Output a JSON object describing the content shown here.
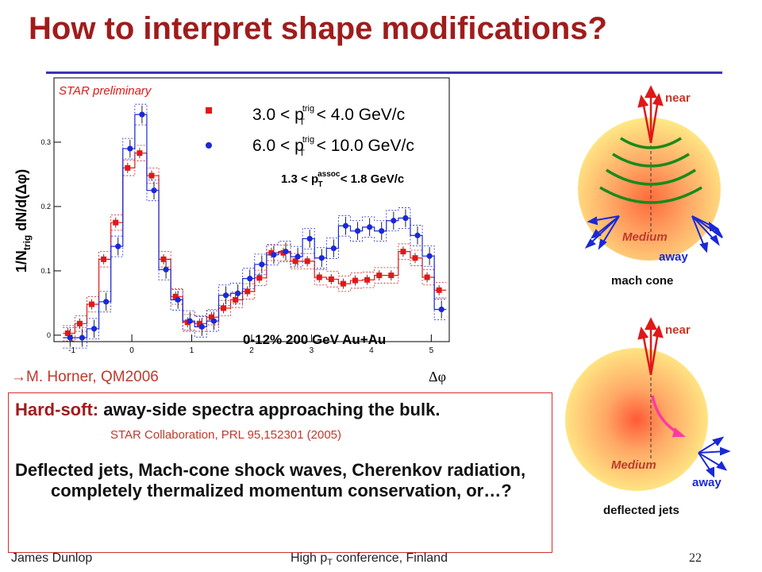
{
  "slide": {
    "title": "How to interpret shape modifications?",
    "reference": "M. Horner, QM2006",
    "reference_arrow": "→",
    "hard_soft_label": "Hard-soft:",
    "hard_soft_text": " away-side spectra approaching the bulk.",
    "citation": "STAR Collaboration, PRL 95,152301 (2005)",
    "deflected_text": "Deflected jets, Mach-cone shock waves, Cherenkov radiation, completely thermalized momentum conservation, or…?",
    "footer_author": "James Dunlop",
    "footer_conf_pre": "High p",
    "footer_conf_sub": "T",
    "footer_conf_post": " conference, Finland",
    "page_number": "22"
  },
  "diagrams": {
    "mach": {
      "near": "near",
      "away": "away",
      "medium": "Medium",
      "caption": "mach cone"
    },
    "deflected": {
      "near": "near",
      "away": "away",
      "medium": "Medium",
      "caption": "deflected jets"
    }
  },
  "chart_data": {
    "type": "scatter",
    "preliminary_label": "STAR preliminary",
    "ylabel_main": "1/N",
    "ylabel_sub": "trig",
    "ylabel_rest": " dN/d(Δφ)",
    "xlabel": "Δφ",
    "centrality_label": "0-12% 200 GeV Au+Au",
    "assoc_label": "1.3 < p",
    "assoc_sup": "assoc",
    "assoc_sub": "T",
    "assoc_rest": " < 1.8 GeV/c",
    "xlim": [
      -1.3,
      5.3
    ],
    "ylim": [
      -0.01,
      0.4
    ],
    "xticks": [
      -1,
      0,
      1,
      2,
      3,
      4,
      5
    ],
    "yticks": [
      0,
      0.1,
      0.2,
      0.3
    ],
    "ytick_labels": [
      "0",
      "0.1",
      "0.2",
      "0.3"
    ],
    "grid": false,
    "legend_position": "top-right",
    "colors": {
      "red": "#e01818",
      "blue": "#1a28d8"
    },
    "x": [
      -1.05,
      -0.85,
      -0.65,
      -0.45,
      -0.25,
      -0.05,
      0.15,
      0.35,
      0.55,
      0.75,
      0.95,
      1.15,
      1.35,
      1.55,
      1.75,
      1.95,
      2.15,
      2.35,
      2.55,
      2.75,
      2.95,
      3.15,
      3.35,
      3.55,
      3.75,
      3.95,
      4.15,
      4.35,
      4.55,
      4.75,
      4.95,
      5.15
    ],
    "series": [
      {
        "name": "3.0 < p",
        "name_sup": "trig",
        "name_sub": "T",
        "name_rest": " < 4.0 GeV/c",
        "color": "#e01818",
        "marker": "square",
        "values": [
          0.003,
          0.018,
          0.048,
          0.118,
          0.175,
          0.26,
          0.283,
          0.248,
          0.118,
          0.06,
          0.02,
          0.018,
          0.028,
          0.042,
          0.055,
          0.068,
          0.089,
          0.128,
          0.128,
          0.115,
          0.115,
          0.09,
          0.087,
          0.08,
          0.085,
          0.086,
          0.093,
          0.093,
          0.13,
          0.12,
          0.09,
          0.07
        ]
      },
      {
        "name": "6.0 < p",
        "name_sup": "trig",
        "name_sub": "T",
        "name_rest": " < 10.0 GeV/c",
        "color": "#1a28d8",
        "marker": "circle",
        "values": [
          -0.004,
          -0.004,
          0.01,
          0.052,
          0.138,
          0.29,
          0.343,
          0.225,
          0.102,
          0.055,
          0.022,
          0.013,
          0.022,
          0.062,
          0.065,
          0.088,
          0.11,
          0.125,
          0.13,
          0.122,
          0.15,
          0.12,
          0.135,
          0.17,
          0.162,
          0.168,
          0.162,
          0.178,
          0.182,
          0.155,
          0.123,
          0.04
        ]
      }
    ]
  }
}
